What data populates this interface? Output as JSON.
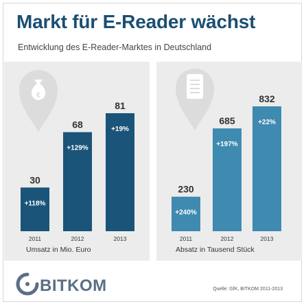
{
  "title": "Markt für E-Reader wächst",
  "subtitle": "Entwicklung des E-Reader-Marktes in Deutschland",
  "source": "Quelle: GfK, BITKOM 2011-2013",
  "logo_text": "BITKOM",
  "colors": {
    "title": "#1b4f72",
    "left_bars": "#1a5478",
    "right_bars": "#3f8ab0",
    "panel": "#ececec",
    "icon": "#dcdcdc"
  },
  "chart_data": [
    {
      "type": "bar",
      "categories": [
        "2011",
        "2012",
        "2013"
      ],
      "values": [
        30,
        68,
        81
      ],
      "value_labels": [
        "30",
        "68",
        "81"
      ],
      "growth_labels": [
        "+118%",
        "+129%",
        "+19%"
      ],
      "xlabel": "Umsatz in Mio. Euro",
      "icon": "money-bag-euro-icon"
    },
    {
      "type": "bar",
      "categories": [
        "2011",
        "2012",
        "2013"
      ],
      "values": [
        230,
        685,
        832
      ],
      "value_labels": [
        "230",
        "685",
        "832"
      ],
      "growth_labels": [
        "+240%",
        "+197%",
        "+22%"
      ],
      "xlabel": "Absatz in Tausend Stück",
      "icon": "e-reader-device-icon"
    }
  ]
}
